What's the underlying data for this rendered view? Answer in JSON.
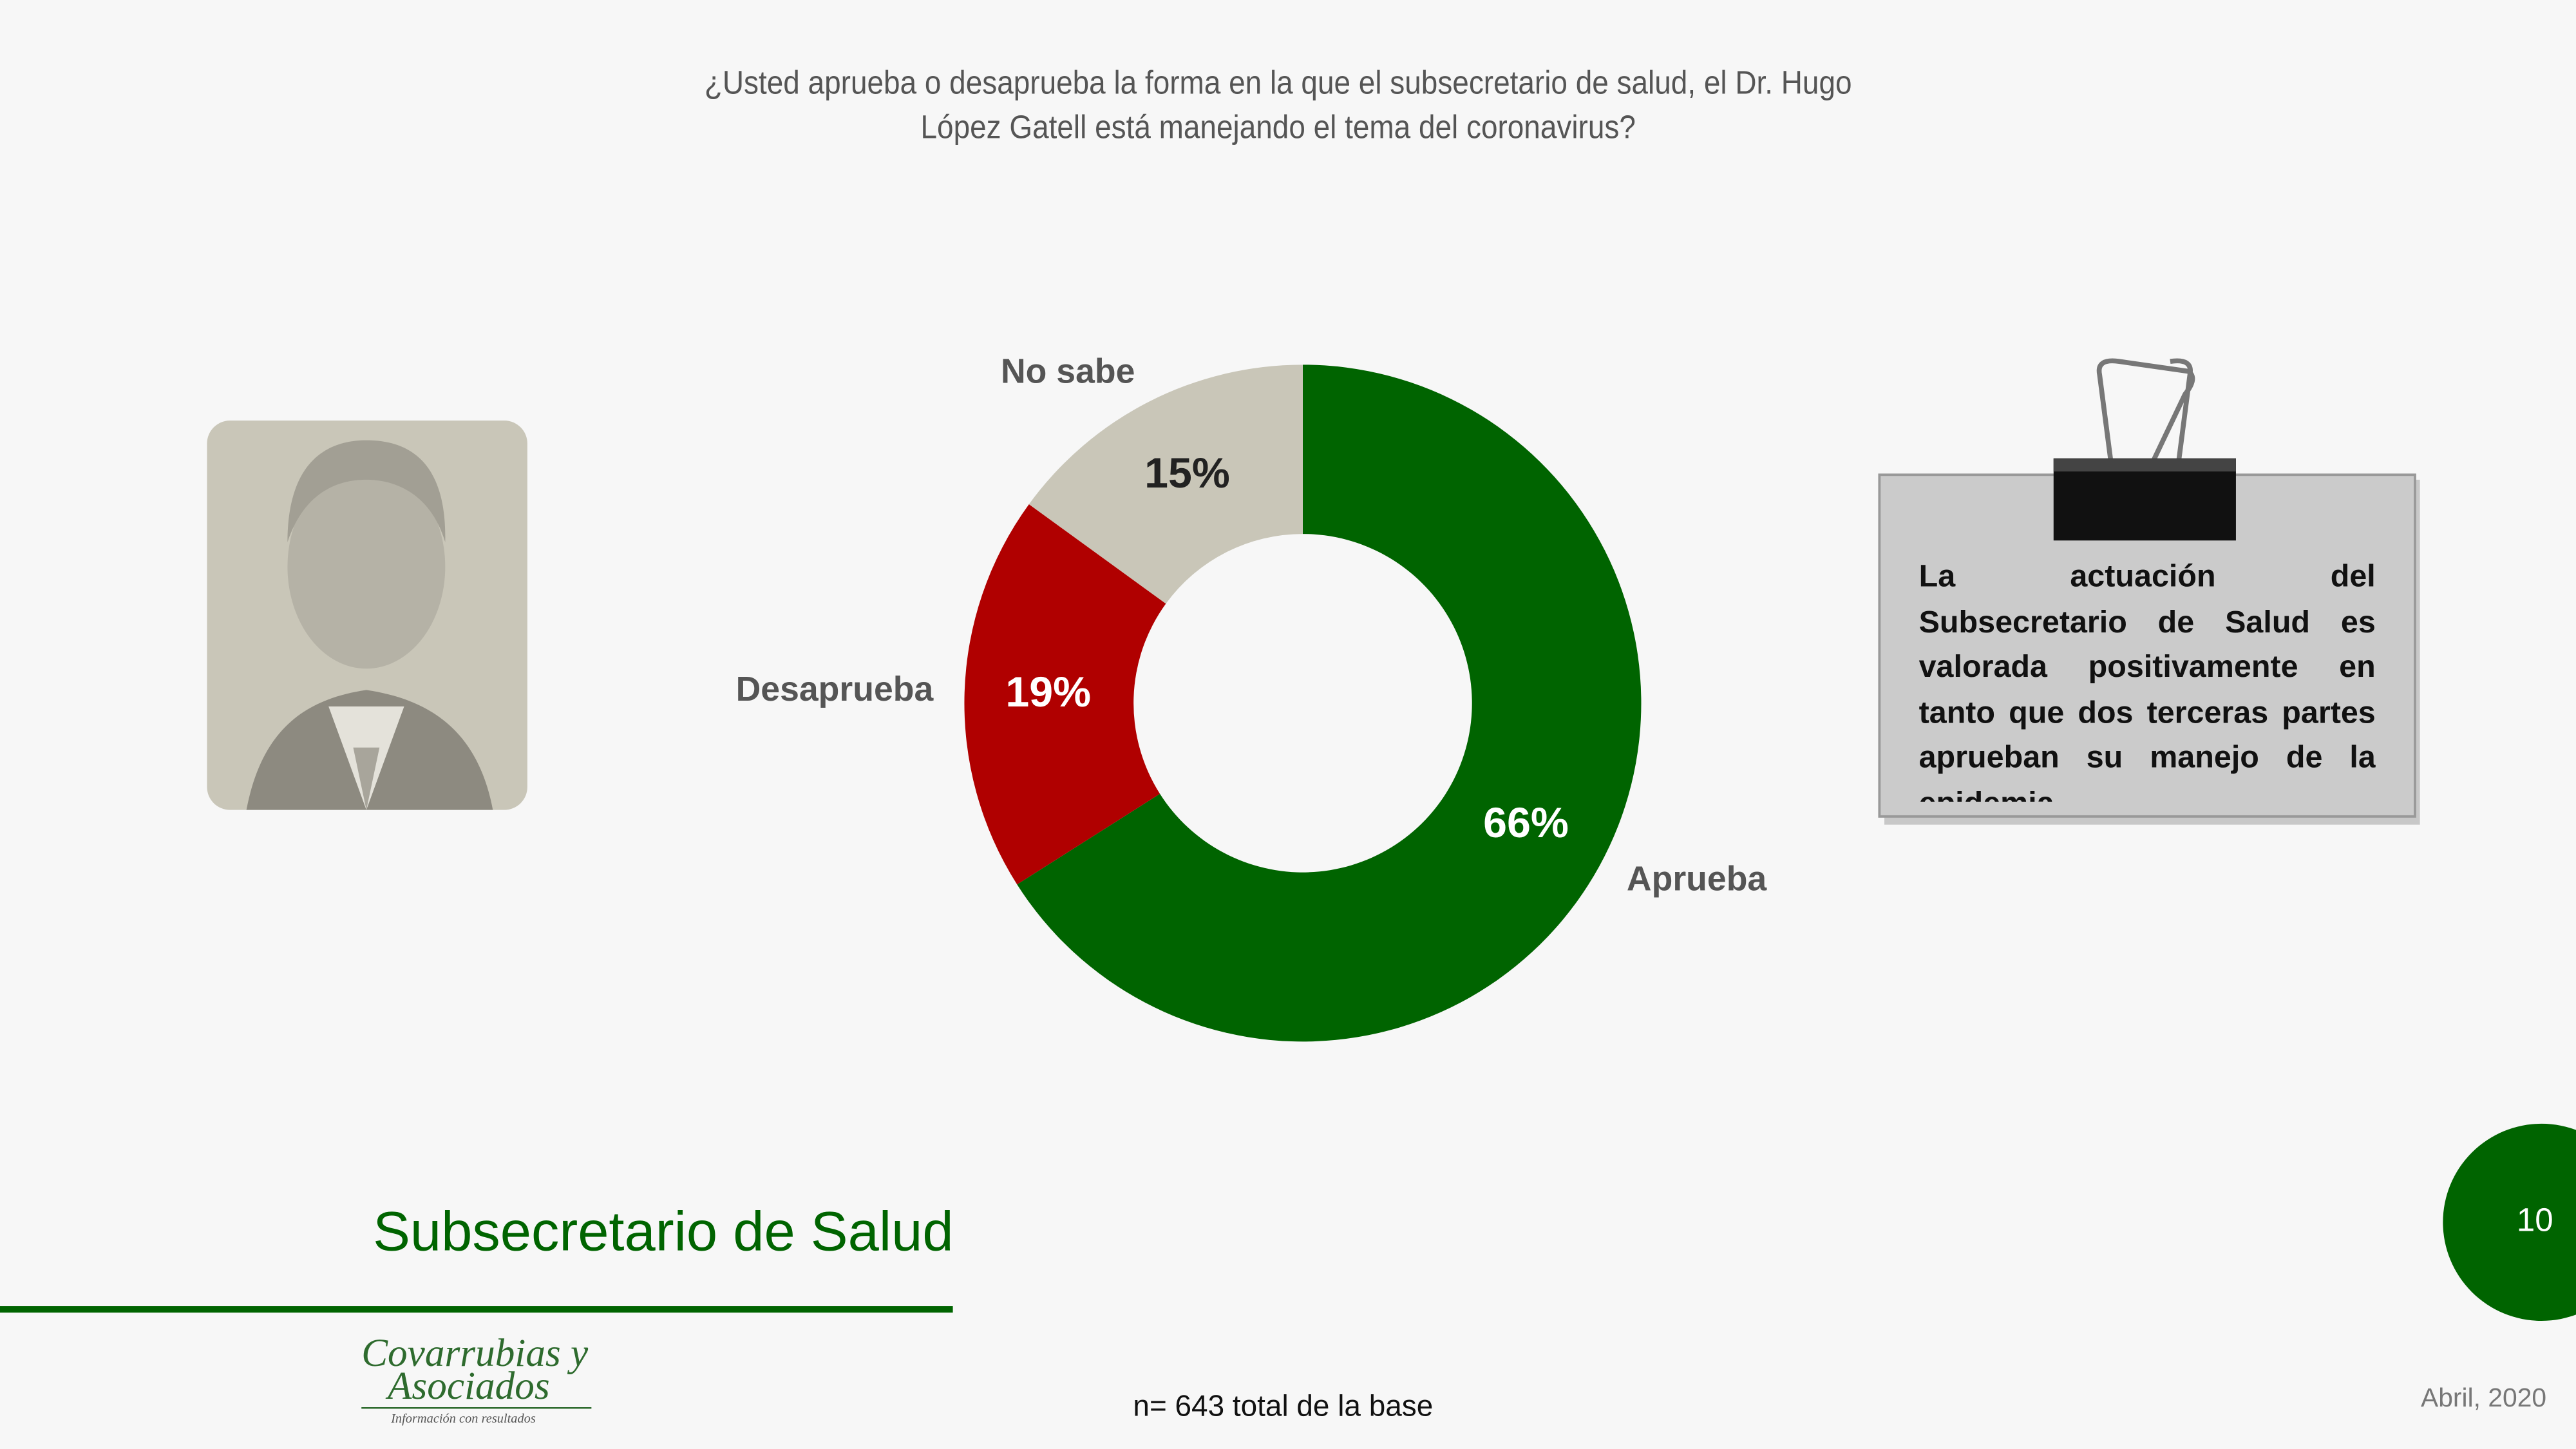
{
  "chart_data": {
    "type": "donut",
    "title": "¿Usted aprueba o desaprueba la forma en la que el subsecretario de salud, el Dr. Hugo López Gatell está manejando el tema del coronavirus?",
    "categories": [
      "Aprueba",
      "Desaprueba",
      "No sabe"
    ],
    "values": [
      66,
      19,
      15
    ],
    "value_labels": [
      "66%",
      "19%",
      "15%"
    ],
    "colors": [
      "#006400",
      "#b00000",
      "#c9c6b8"
    ]
  },
  "callout": "La actuación del Subsecretario de Salud es valorada positivamente en tanto que dos terceras partes aprueban su manejo de la epidemia.",
  "section_title": "Subsecretario de Salud",
  "logo": {
    "line1": "Covarrubias y",
    "line2": "Asociados",
    "tagline": "Información con resultados"
  },
  "page_number": "10",
  "footnote": "n= 643 total de la base",
  "date": "Abril, 2020"
}
